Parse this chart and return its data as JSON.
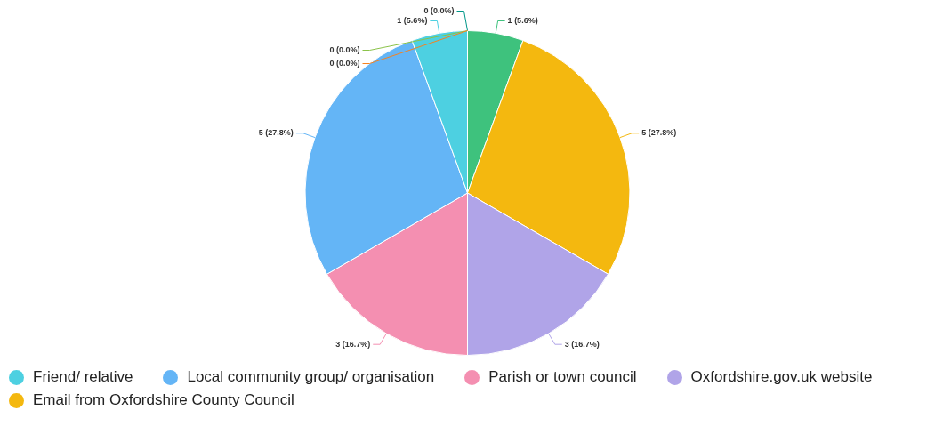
{
  "chart_data": {
    "type": "pie",
    "categories": [
      null,
      null,
      null,
      "Friend/ relative",
      "Local community group/ organisation",
      "Parish or town council",
      "Oxfordshire.gov.uk website",
      "Email from Oxfordshire County Council",
      null
    ],
    "values": [
      0,
      0,
      0,
      1,
      5,
      3,
      3,
      5,
      1
    ],
    "value_labels": [
      "0 (0.0%)",
      "0 (0.0%)",
      "0 (0.0%)",
      "1 (5.6%)",
      "5 (27.8%)",
      "3 (16.7%)",
      "3 (16.7%)",
      "5 (27.8%)",
      "1 (5.6%)"
    ],
    "colors": [
      "#f6821f",
      "#8bc34a",
      "#009688",
      "#4dd0e1",
      "#64b5f6",
      "#f48fb1",
      "#b0a4e8",
      "#f4b80f",
      "#3ec27d"
    ],
    "legend": "bottom"
  }
}
